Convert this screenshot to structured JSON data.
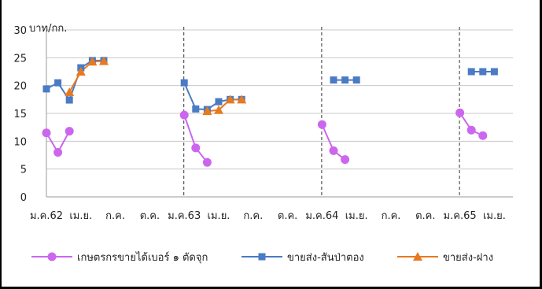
{
  "chart_data": {
    "type": "line",
    "unit_label": "บาท/กก.",
    "ylim": [
      0,
      30
    ],
    "y_ticks": [
      0,
      5,
      10,
      15,
      20,
      25,
      30
    ],
    "x_tick_labels": [
      "ม.ค.62",
      "เม.ย.",
      "ก.ค.",
      "ต.ค.",
      "ม.ค.63",
      "เม.ย.",
      "ก.ค.",
      "ต.ค.",
      "ม.ค.64",
      "เม.ย.",
      "ก.ค.",
      "ต.ค.",
      "ม.ค.65",
      "เม.ย."
    ],
    "x_months": [
      "2019-01",
      "2019-02",
      "2019-03",
      "2019-04",
      "2019-05",
      "2019-06",
      "2019-07",
      "2019-08",
      "2019-09",
      "2019-10",
      "2019-11",
      "2019-12",
      "2020-01",
      "2020-02",
      "2020-03",
      "2020-04",
      "2020-05",
      "2020-06",
      "2020-07",
      "2020-08",
      "2020-09",
      "2020-10",
      "2020-11",
      "2020-12",
      "2021-01",
      "2021-02",
      "2021-03",
      "2021-04",
      "2021-05",
      "2021-06",
      "2021-07",
      "2021-08",
      "2021-09",
      "2021-10",
      "2021-11",
      "2021-12",
      "2022-01",
      "2022-02",
      "2022-03",
      "2022-04"
    ],
    "year_dividers": [
      "2020-01",
      "2021-01",
      "2022-01"
    ],
    "grid": true,
    "legend_position": "bottom",
    "series": [
      {
        "name": "เกษตรกรขายได้เบอร์ ๑ ตัดจุก",
        "color": "#cc66ee",
        "marker": "circle",
        "values": [
          11.5,
          8.0,
          11.8,
          null,
          null,
          null,
          null,
          null,
          null,
          null,
          null,
          null,
          14.7,
          8.8,
          6.2,
          null,
          null,
          null,
          null,
          null,
          null,
          null,
          null,
          null,
          13.0,
          8.3,
          6.7,
          null,
          null,
          null,
          null,
          null,
          null,
          null,
          null,
          null,
          15.1,
          12.0,
          11.0,
          null
        ]
      },
      {
        "name": "ขายส่ง-สันป่าตอง",
        "color": "#4a7bc4",
        "marker": "square",
        "values": [
          19.4,
          20.5,
          17.4,
          23.2,
          24.5,
          24.5,
          null,
          null,
          null,
          null,
          null,
          null,
          20.5,
          15.8,
          15.7,
          17.1,
          17.5,
          17.5,
          null,
          null,
          null,
          null,
          null,
          null,
          null,
          21.0,
          21.0,
          21.0,
          null,
          null,
          null,
          null,
          null,
          null,
          null,
          null,
          null,
          22.5,
          22.5,
          22.5
        ]
      },
      {
        "name": "ขายส่ง-ฝาง",
        "color": "#e87a1e",
        "marker": "triangle",
        "values": [
          null,
          null,
          18.8,
          22.5,
          24.3,
          24.4,
          null,
          null,
          null,
          null,
          null,
          null,
          null,
          null,
          15.4,
          15.6,
          17.5,
          17.5,
          null,
          null,
          null,
          null,
          null,
          null,
          null,
          null,
          null,
          null,
          null,
          null,
          null,
          null,
          null,
          null,
          null,
          null,
          null,
          null,
          null,
          null
        ]
      }
    ]
  }
}
